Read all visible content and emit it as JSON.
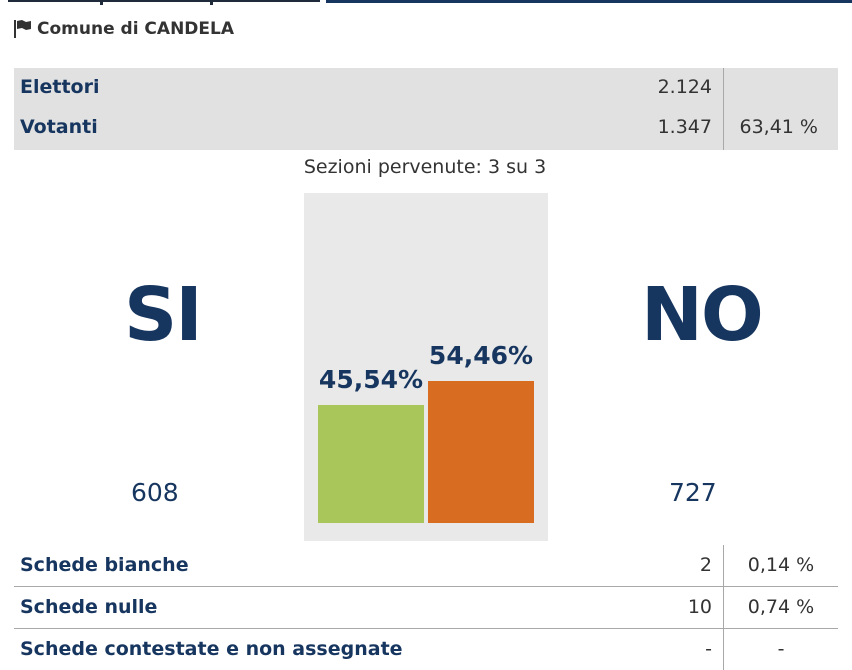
{
  "comune": {
    "icon": "flag-icon",
    "title": "Comune di CANDELA"
  },
  "summary": {
    "elettori": {
      "label": "Elettori",
      "value": "2.124"
    },
    "votanti": {
      "label": "Votanti",
      "value": "1.347",
      "percent": "63,41 %"
    }
  },
  "sezioni": "Sezioni pervenute: 3 su 3",
  "results": {
    "si": {
      "label": "SI",
      "count": "608",
      "percent_label": "45,54%",
      "percent": 45.54,
      "color": "#a9c65a"
    },
    "no": {
      "label": "NO",
      "count": "727",
      "percent_label": "54,46%",
      "percent": 54.46,
      "color": "#d86d22"
    }
  },
  "details": [
    {
      "label": "Schede bianche",
      "value": "2",
      "percent": "0,14 %"
    },
    {
      "label": "Schede nulle",
      "value": "10",
      "percent": "0,74 %"
    },
    {
      "label": "Schede contestate e non assegnate",
      "value": "-",
      "percent": "-"
    }
  ],
  "colors": {
    "primary_text": "#16355f",
    "panel_bg": "#e1e1e1",
    "chart_bg": "#e9e9e9"
  }
}
